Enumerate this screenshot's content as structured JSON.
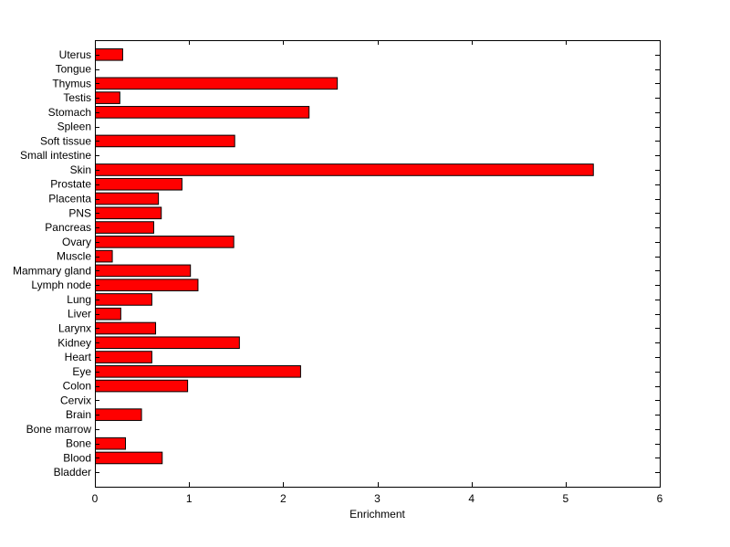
{
  "chart_data": {
    "type": "bar",
    "orientation": "horizontal",
    "title": "",
    "xlabel": "Enrichment",
    "ylabel": "",
    "xlim": [
      0,
      6
    ],
    "xticks": [
      0,
      1,
      2,
      3,
      4,
      5,
      6
    ],
    "grid": false,
    "legend": "none",
    "bar_color": "#ff0000",
    "categories": [
      "Uterus",
      "Tongue",
      "Thymus",
      "Testis",
      "Stomach",
      "Spleen",
      "Soft tissue",
      "Small intestine",
      "Skin",
      "Prostate",
      "Placenta",
      "PNS",
      "Pancreas",
      "Ovary",
      "Muscle",
      "Mammary gland",
      "Lymph node",
      "Lung",
      "Liver",
      "Larynx",
      "Kidney",
      "Heart",
      "Eye",
      "Colon",
      "Cervix",
      "Brain",
      "Bone marrow",
      "Bone",
      "Blood",
      "Bladder"
    ],
    "values": [
      0.29,
      0,
      2.57,
      0.26,
      2.27,
      0,
      1.48,
      0,
      5.29,
      0.92,
      0.67,
      0.7,
      0.62,
      1.47,
      0.18,
      1.01,
      1.09,
      0.6,
      0.27,
      0.64,
      1.53,
      0.6,
      2.18,
      0.98,
      0,
      0.49,
      0,
      0.32,
      0.71,
      0
    ]
  }
}
